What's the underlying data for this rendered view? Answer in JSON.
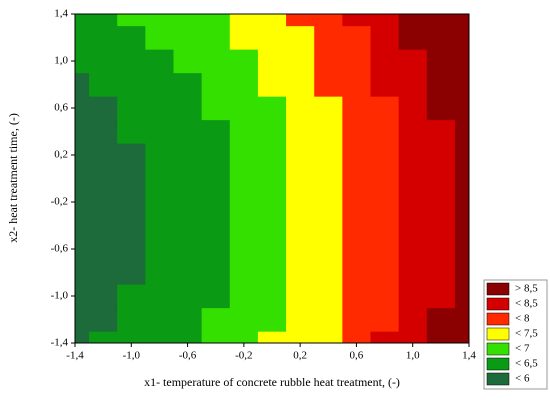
{
  "chart_data": {
    "type": "contour",
    "xlabel": "x1- temperature of concrete rubble heat treatment, (-)",
    "ylabel": "x2- heat treatment time, (-)",
    "xlim": [
      -1.4,
      1.4
    ],
    "ylim": [
      -1.4,
      1.4
    ],
    "xticks": [
      {
        "value": -1.4,
        "label": "-1,4"
      },
      {
        "value": -1.0,
        "label": "-1,0"
      },
      {
        "value": -0.6,
        "label": "-0,6"
      },
      {
        "value": -0.2,
        "label": "-0,2"
      },
      {
        "value": 0.2,
        "label": "0,2"
      },
      {
        "value": 0.6,
        "label": "0,6"
      },
      {
        "value": 1.0,
        "label": "1,0"
      },
      {
        "value": 1.4,
        "label": "1,4"
      }
    ],
    "yticks": [
      {
        "value": -1.4,
        "label": "-1,4"
      },
      {
        "value": -1.0,
        "label": "-1,0"
      },
      {
        "value": -0.6,
        "label": "-0,6"
      },
      {
        "value": -0.2,
        "label": "-0,2"
      },
      {
        "value": 0.2,
        "label": "0,2"
      },
      {
        "value": 0.6,
        "label": "0,6"
      },
      {
        "value": 1.0,
        "label": "1,0"
      },
      {
        "value": 1.4,
        "label": "1,4"
      }
    ],
    "legend": [
      {
        "label": "> 8,5",
        "value": 8.5,
        "color": "#8b0000"
      },
      {
        "label": "< 8,5",
        "value": 8.5,
        "color": "#d40000"
      },
      {
        "label": "< 8",
        "value": 8,
        "color": "#ff2a00"
      },
      {
        "label": "< 7,5",
        "value": 7.5,
        "color": "#ffff00"
      },
      {
        "label": "< 7",
        "value": 7,
        "color": "#33e000"
      },
      {
        "label": "< 6,5",
        "value": 6.5,
        "color": "#0a9a14"
      },
      {
        "label": "< 6",
        "value": 6,
        "color": "#1d6b3a"
      }
    ],
    "x": [
      -1.4,
      -1.2,
      -1.0,
      -0.8,
      -0.6,
      -0.4,
      -0.2,
      0,
      0.2,
      0.4,
      0.6,
      0.8,
      1.0,
      1.2,
      1.4
    ],
    "y": [
      -1.4,
      -1.2,
      -1.0,
      -0.8,
      -0.6,
      -0.4,
      -0.2,
      0,
      0.2,
      0.4,
      0.6,
      0.8,
      1.0,
      1.2,
      1.4
    ],
    "z": [
      [
        5.92,
        6.02,
        6.14,
        6.28,
        6.43,
        6.6,
        6.79,
        7.0,
        7.22,
        7.46,
        7.72,
        8.0,
        8.29,
        8.6,
        8.93
      ],
      [
        5.84,
        5.94,
        6.06,
        6.2,
        6.35,
        6.52,
        6.71,
        6.92,
        7.14,
        7.38,
        7.64,
        7.92,
        8.21,
        8.52,
        8.85
      ],
      [
        5.78,
        5.88,
        6.0,
        6.14,
        6.29,
        6.46,
        6.65,
        6.86,
        7.08,
        7.32,
        7.58,
        7.86,
        8.15,
        8.46,
        8.79
      ],
      [
        5.74,
        5.84,
        5.96,
        6.1,
        6.25,
        6.42,
        6.61,
        6.82,
        7.04,
        7.28,
        7.54,
        7.82,
        8.11,
        8.42,
        8.75
      ],
      [
        5.71,
        5.81,
        5.93,
        6.07,
        6.22,
        6.39,
        6.58,
        6.79,
        7.01,
        7.25,
        7.51,
        7.79,
        8.08,
        8.39,
        8.72
      ],
      [
        5.7,
        5.8,
        5.92,
        6.06,
        6.21,
        6.38,
        6.57,
        6.78,
        7.0,
        7.24,
        7.5,
        7.78,
        8.07,
        8.38,
        8.71
      ],
      [
        5.7,
        5.8,
        5.92,
        6.06,
        6.21,
        6.38,
        6.57,
        6.78,
        7.0,
        7.24,
        7.5,
        7.78,
        8.07,
        8.38,
        8.71
      ],
      [
        5.72,
        5.82,
        5.94,
        6.08,
        6.23,
        6.4,
        6.59,
        6.8,
        7.02,
        7.26,
        7.52,
        7.8,
        8.09,
        8.4,
        8.73
      ],
      [
        5.76,
        5.86,
        5.98,
        6.12,
        6.27,
        6.44,
        6.63,
        6.84,
        7.06,
        7.3,
        7.56,
        7.84,
        8.13,
        8.44,
        8.77
      ],
      [
        5.81,
        5.91,
        6.03,
        6.17,
        6.32,
        6.49,
        6.68,
        6.89,
        7.11,
        7.35,
        7.61,
        7.89,
        8.18,
        8.49,
        8.82
      ],
      [
        5.88,
        5.98,
        6.1,
        6.24,
        6.39,
        6.56,
        6.75,
        6.96,
        7.18,
        7.42,
        7.68,
        7.96,
        8.25,
        8.56,
        8.89
      ],
      [
        5.96,
        6.06,
        6.18,
        6.32,
        6.47,
        6.64,
        6.83,
        7.04,
        7.26,
        7.5,
        7.76,
        8.04,
        8.33,
        8.64,
        8.97
      ],
      [
        6.06,
        6.16,
        6.28,
        6.42,
        6.57,
        6.74,
        6.93,
        7.14,
        7.36,
        7.6,
        7.86,
        8.14,
        8.43,
        8.74,
        9.07
      ],
      [
        6.18,
        6.28,
        6.4,
        6.54,
        6.69,
        6.86,
        7.05,
        7.26,
        7.48,
        7.72,
        7.98,
        8.26,
        8.55,
        8.86,
        9.19
      ],
      [
        6.31,
        6.41,
        6.53,
        6.67,
        6.82,
        6.99,
        7.18,
        7.39,
        7.61,
        7.85,
        8.11,
        8.39,
        8.68,
        8.99,
        9.32
      ]
    ]
  }
}
